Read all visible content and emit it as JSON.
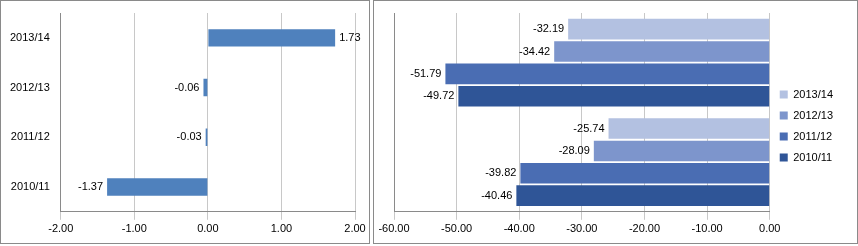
{
  "chart_data": [
    {
      "type": "bar",
      "orientation": "horizontal",
      "categories": [
        "2013/14",
        "2012/13",
        "2011/12",
        "2010/11"
      ],
      "values": [
        1.73,
        -0.06,
        -0.03,
        -1.37
      ],
      "color": "#4f81bd",
      "xlim": [
        -2,
        2
      ],
      "xticks": [
        {
          "value": -2,
          "label": "-2.00"
        },
        {
          "value": -1,
          "label": "-1.00"
        },
        {
          "value": 0,
          "label": "0.00"
        },
        {
          "value": 1,
          "label": "1.00"
        },
        {
          "value": 2,
          "label": "2.00"
        }
      ],
      "grid": true,
      "data_labels": true
    },
    {
      "type": "bar",
      "orientation": "horizontal",
      "categories": [
        null,
        null
      ],
      "series": [
        {
          "name": "2013/14",
          "color": "#b3c1e1",
          "values": [
            -32.19,
            -25.74
          ]
        },
        {
          "name": "2012/13",
          "color": "#7d95cc",
          "values": [
            -34.42,
            -28.09
          ]
        },
        {
          "name": "2011/12",
          "color": "#4a6db3",
          "values": [
            -51.79,
            -39.82
          ]
        },
        {
          "name": "2010/11",
          "color": "#2f5597",
          "values": [
            -49.72,
            -40.46
          ]
        }
      ],
      "xlim": [
        -60,
        0
      ],
      "xticks": [
        {
          "value": -60,
          "label": "-60.00"
        },
        {
          "value": -50,
          "label": "-50.00"
        },
        {
          "value": -40,
          "label": "-40.00"
        },
        {
          "value": -30,
          "label": "-30.00"
        },
        {
          "value": -20,
          "label": "-20.00"
        },
        {
          "value": -10,
          "label": "-10.00"
        },
        {
          "value": 0,
          "label": "0.00"
        }
      ],
      "grid": true,
      "data_labels": true,
      "legend": "right"
    }
  ]
}
